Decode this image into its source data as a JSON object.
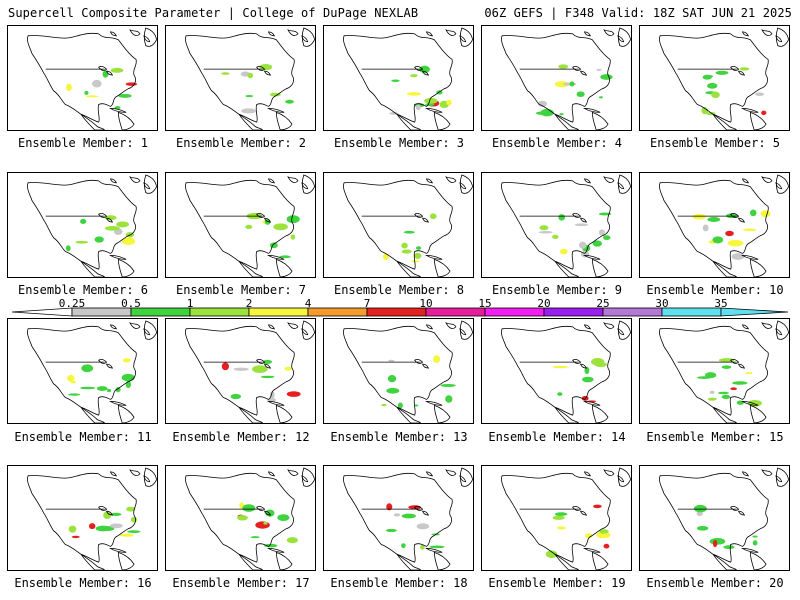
{
  "header": {
    "left": "Supercell Composite Parameter | College of DuPage NEXLAB",
    "right": "06Z GEFS | F348 Valid: 18Z SAT JUN 21 2025"
  },
  "member_label_prefix": "Ensemble Member: ",
  "members": [
    "1",
    "2",
    "3",
    "4",
    "5",
    "6",
    "7",
    "8",
    "9",
    "10",
    "11",
    "12",
    "13",
    "14",
    "15",
    "16",
    "17",
    "18",
    "19",
    "20"
  ],
  "colorbar": {
    "labels": [
      "0.25",
      "0.5",
      "1",
      "2",
      "4",
      "7",
      "10",
      "15",
      "20",
      "25",
      "30",
      "35"
    ],
    "colors": [
      "#c8c8c8",
      "#3fd33f",
      "#9be23c",
      "#f6f63c",
      "#f59b2d",
      "#e52020",
      "#e81d9c",
      "#f21ef2",
      "#9a1ef0",
      "#b27ad6",
      "#5fe0f0"
    ]
  },
  "icons": [
    "map-panel",
    "colorbar-arrow-left",
    "colorbar-arrow-right"
  ]
}
